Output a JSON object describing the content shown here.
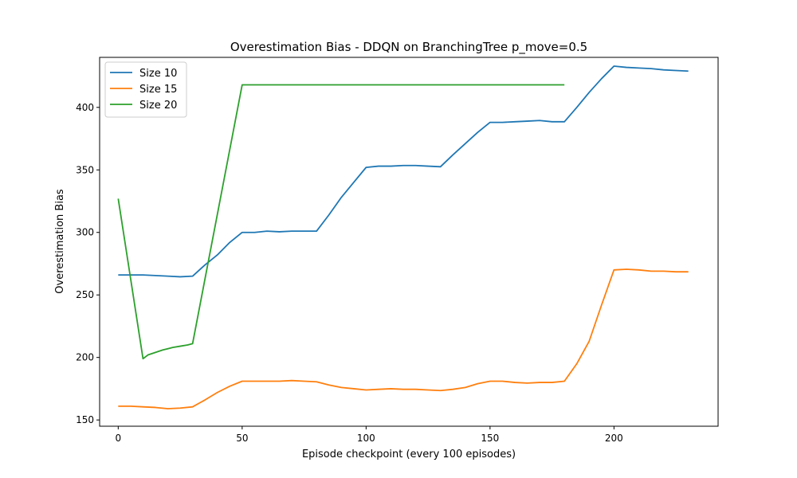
{
  "chart_data": {
    "type": "line",
    "title": "Overestimation Bias - DDQN on BranchingTree p_move=0.5",
    "xlabel": "Episode checkpoint (every 100 episodes)",
    "ylabel": "Overestimation Bias",
    "xlim": [
      -7.5,
      242
    ],
    "ylim": [
      145,
      440
    ],
    "xticks": [
      0,
      50,
      100,
      150,
      200
    ],
    "yticks": [
      150,
      200,
      250,
      300,
      350,
      400
    ],
    "grid": false,
    "legend_position": "top-left",
    "series": [
      {
        "name": "Size 10",
        "color": "#1f77b4",
        "points": [
          [
            0,
            266
          ],
          [
            5,
            266
          ],
          [
            10,
            266
          ],
          [
            15,
            265.5
          ],
          [
            20,
            265
          ],
          [
            25,
            264.5
          ],
          [
            30,
            265
          ],
          [
            35,
            274
          ],
          [
            40,
            282
          ],
          [
            45,
            292
          ],
          [
            50,
            300
          ],
          [
            55,
            300
          ],
          [
            60,
            301
          ],
          [
            65,
            300.5
          ],
          [
            70,
            301
          ],
          [
            75,
            301
          ],
          [
            80,
            301
          ],
          [
            85,
            314
          ],
          [
            90,
            328
          ],
          [
            95,
            340
          ],
          [
            100,
            352
          ],
          [
            105,
            353
          ],
          [
            110,
            353
          ],
          [
            115,
            353.5
          ],
          [
            120,
            353.5
          ],
          [
            125,
            353
          ],
          [
            130,
            352.5
          ],
          [
            135,
            362
          ],
          [
            140,
            371
          ],
          [
            145,
            380
          ],
          [
            150,
            388
          ],
          [
            155,
            388
          ],
          [
            160,
            388.5
          ],
          [
            165,
            389
          ],
          [
            170,
            389.5
          ],
          [
            175,
            388.5
          ],
          [
            180,
            388.5
          ],
          [
            185,
            400
          ],
          [
            190,
            412
          ],
          [
            195,
            423
          ],
          [
            200,
            433
          ],
          [
            205,
            432
          ],
          [
            210,
            431.5
          ],
          [
            215,
            431
          ],
          [
            220,
            430
          ],
          [
            225,
            429.5
          ],
          [
            230,
            429
          ]
        ]
      },
      {
        "name": "Size 15",
        "color": "#ff7f0e",
        "points": [
          [
            0,
            161
          ],
          [
            5,
            161
          ],
          [
            10,
            160.5
          ],
          [
            15,
            160
          ],
          [
            20,
            159
          ],
          [
            25,
            159.5
          ],
          [
            30,
            160.5
          ],
          [
            35,
            166
          ],
          [
            40,
            172
          ],
          [
            45,
            177
          ],
          [
            50,
            181
          ],
          [
            55,
            181
          ],
          [
            60,
            181
          ],
          [
            65,
            181
          ],
          [
            70,
            181.5
          ],
          [
            75,
            181
          ],
          [
            80,
            180.5
          ],
          [
            85,
            178
          ],
          [
            90,
            176
          ],
          [
            95,
            175
          ],
          [
            100,
            174
          ],
          [
            105,
            174.5
          ],
          [
            110,
            175
          ],
          [
            115,
            174.5
          ],
          [
            120,
            174.5
          ],
          [
            125,
            174
          ],
          [
            130,
            173.5
          ],
          [
            135,
            174.5
          ],
          [
            140,
            176
          ],
          [
            145,
            179
          ],
          [
            150,
            181
          ],
          [
            155,
            181
          ],
          [
            160,
            180
          ],
          [
            165,
            179.5
          ],
          [
            170,
            180
          ],
          [
            175,
            180
          ],
          [
            180,
            181
          ],
          [
            185,
            195
          ],
          [
            190,
            213
          ],
          [
            195,
            242
          ],
          [
            200,
            270
          ],
          [
            205,
            270.5
          ],
          [
            210,
            270
          ],
          [
            215,
            269
          ],
          [
            220,
            269
          ],
          [
            225,
            268.5
          ],
          [
            230,
            268.5
          ]
        ]
      },
      {
        "name": "Size 20",
        "color": "#2ca02c",
        "points": [
          [
            0,
            327
          ],
          [
            10,
            199
          ],
          [
            12,
            202
          ],
          [
            15,
            204
          ],
          [
            18,
            206
          ],
          [
            20,
            207
          ],
          [
            22,
            208
          ],
          [
            25,
            209
          ],
          [
            28,
            210
          ],
          [
            30,
            211
          ],
          [
            50,
            418
          ],
          [
            60,
            418
          ],
          [
            70,
            418
          ],
          [
            80,
            418
          ],
          [
            90,
            418
          ],
          [
            100,
            418
          ],
          [
            110,
            418
          ],
          [
            120,
            418
          ],
          [
            130,
            418
          ],
          [
            140,
            418
          ],
          [
            150,
            418
          ],
          [
            160,
            418
          ],
          [
            170,
            418
          ],
          [
            180,
            418
          ]
        ]
      }
    ]
  }
}
